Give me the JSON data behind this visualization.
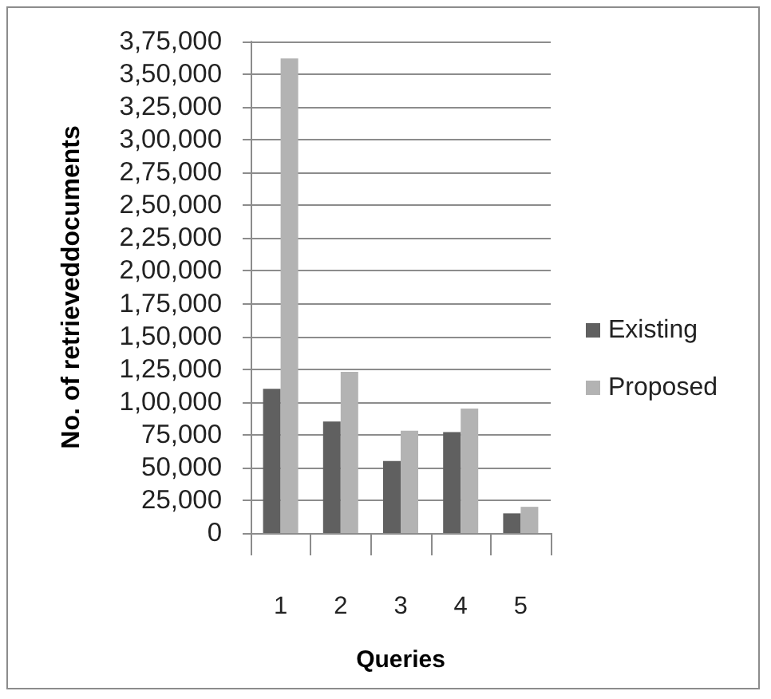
{
  "chart_data": {
    "type": "bar",
    "xlabel": "Queries",
    "ylabel": "No. of retrieveddocuments",
    "categories": [
      "1",
      "2",
      "3",
      "4",
      "5"
    ],
    "series": [
      {
        "name": "Existing",
        "color": "#606060",
        "values": [
          110000,
          85000,
          55000,
          77000,
          15000
        ]
      },
      {
        "name": "Proposed",
        "color": "#b3b3b3",
        "values": [
          362000,
          123000,
          78000,
          95000,
          20000
        ]
      }
    ],
    "ylim": [
      0,
      375000
    ],
    "yticks": [
      {
        "value": 0,
        "label": "0"
      },
      {
        "value": 25000,
        "label": "25,000"
      },
      {
        "value": 50000,
        "label": "50,000"
      },
      {
        "value": 75000,
        "label": "75,000"
      },
      {
        "value": 100000,
        "label": "1,00,000"
      },
      {
        "value": 125000,
        "label": "1,25,000"
      },
      {
        "value": 150000,
        "label": "1,50,000"
      },
      {
        "value": 175000,
        "label": "1,75,000"
      },
      {
        "value": 200000,
        "label": "2,00,000"
      },
      {
        "value": 225000,
        "label": "2,25,000"
      },
      {
        "value": 250000,
        "label": "2,50,000"
      },
      {
        "value": 275000,
        "label": "2,75,000"
      },
      {
        "value": 300000,
        "label": "3,00,000"
      },
      {
        "value": 325000,
        "label": "3,25,000"
      },
      {
        "value": 350000,
        "label": "3,50,000"
      },
      {
        "value": 375000,
        "label": "3,75,000"
      }
    ],
    "grid": "y",
    "legend": "right"
  }
}
